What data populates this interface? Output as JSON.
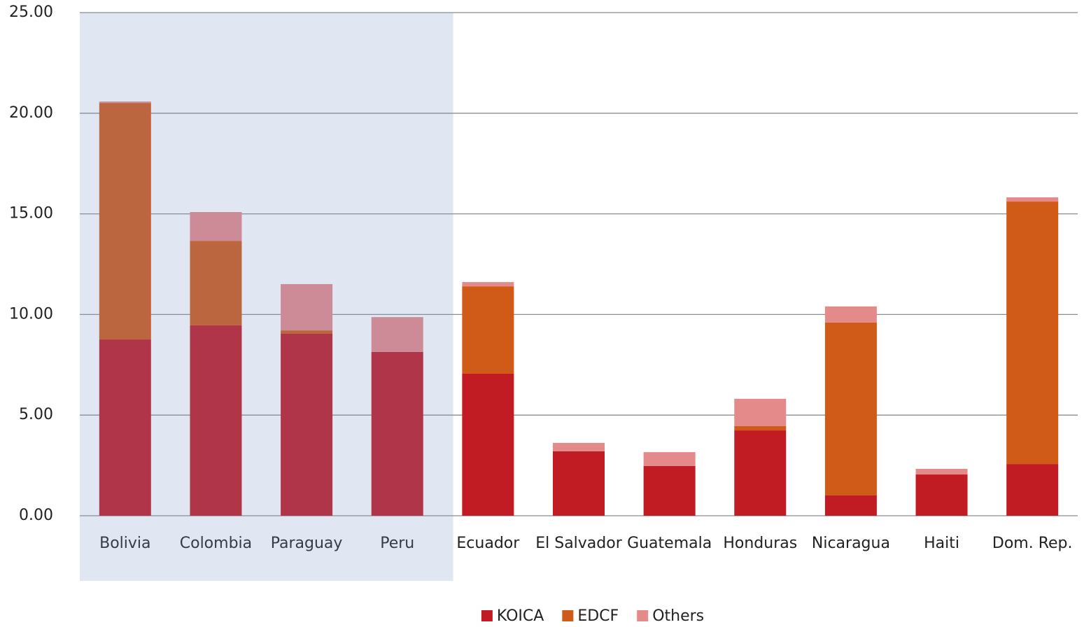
{
  "chart_data": {
    "type": "bar",
    "stacked": true,
    "categories": [
      "Bolivia",
      "Colombia",
      "Paraguay",
      "Peru",
      "Ecuador",
      "El Salvador",
      "Guatemala",
      "Honduras",
      "Nicaragua",
      "Haiti",
      "Dom. Rep."
    ],
    "series": [
      {
        "name": "KOICA",
        "color": "#c11b24",
        "values": [
          8.76,
          9.46,
          9.04,
          8.14,
          7.06,
          3.2,
          2.47,
          4.24,
          1.01,
          2.05,
          2.57
        ]
      },
      {
        "name": "EDCF",
        "color": "#d05a17",
        "values": [
          11.75,
          4.2,
          0.17,
          0,
          4.34,
          0,
          0,
          0.21,
          8.59,
          0,
          13.04
        ]
      },
      {
        "name": "Others",
        "color": "#e58a8a",
        "values": [
          0.07,
          1.43,
          2.3,
          1.73,
          0.21,
          0.42,
          0.69,
          1.36,
          0.8,
          0.28,
          0.21
        ]
      }
    ],
    "ylim": [
      0,
      25
    ],
    "yticks": [
      {
        "value": 0,
        "label": "0.00"
      },
      {
        "value": 5,
        "label": "5.00"
      },
      {
        "value": 10,
        "label": "10.00"
      },
      {
        "value": 15,
        "label": "15.00"
      },
      {
        "value": 20,
        "label": "20.00"
      },
      {
        "value": 25,
        "label": "25.00"
      }
    ],
    "grid": true,
    "legend": "bottom"
  }
}
